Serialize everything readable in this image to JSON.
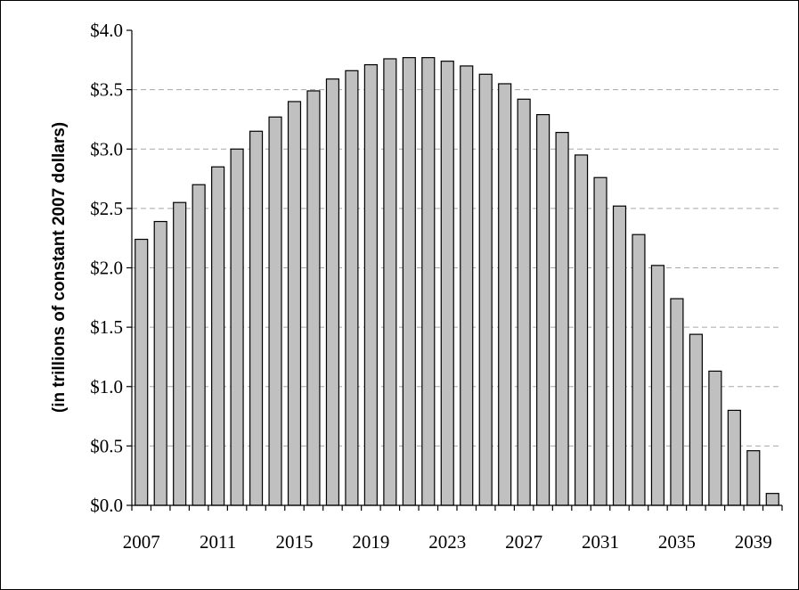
{
  "chart_data": {
    "type": "bar",
    "title": "",
    "xlabel": "",
    "ylabel": "(in trillions of constant 2007 dollars)",
    "ylim": [
      0,
      4.0
    ],
    "y_ticks": [
      "$0.0",
      "$0.5",
      "$1.0",
      "$1.5",
      "$2.0",
      "$2.5",
      "$3.0",
      "$3.5",
      "$4.0"
    ],
    "x_tick_labels": [
      "2007",
      "2011",
      "2015",
      "2019",
      "2023",
      "2027",
      "2031",
      "2035",
      "2039"
    ],
    "grid": "horizontal dashed",
    "bar_color": "#c0c0c0",
    "categories": [
      "2007",
      "2008",
      "2009",
      "2010",
      "2011",
      "2012",
      "2013",
      "2014",
      "2015",
      "2016",
      "2017",
      "2018",
      "2019",
      "2020",
      "2021",
      "2022",
      "2023",
      "2024",
      "2025",
      "2026",
      "2027",
      "2028",
      "2029",
      "2030",
      "2031",
      "2032",
      "2033",
      "2034",
      "2035",
      "2036",
      "2037",
      "2038",
      "2039",
      "2040"
    ],
    "values": [
      2.24,
      2.39,
      2.55,
      2.7,
      2.85,
      3.0,
      3.15,
      3.27,
      3.4,
      3.49,
      3.59,
      3.66,
      3.71,
      3.76,
      3.77,
      3.77,
      3.74,
      3.7,
      3.63,
      3.55,
      3.42,
      3.29,
      3.14,
      2.95,
      2.76,
      2.52,
      2.28,
      2.02,
      1.74,
      1.44,
      1.13,
      0.8,
      0.46,
      0.1
    ]
  }
}
